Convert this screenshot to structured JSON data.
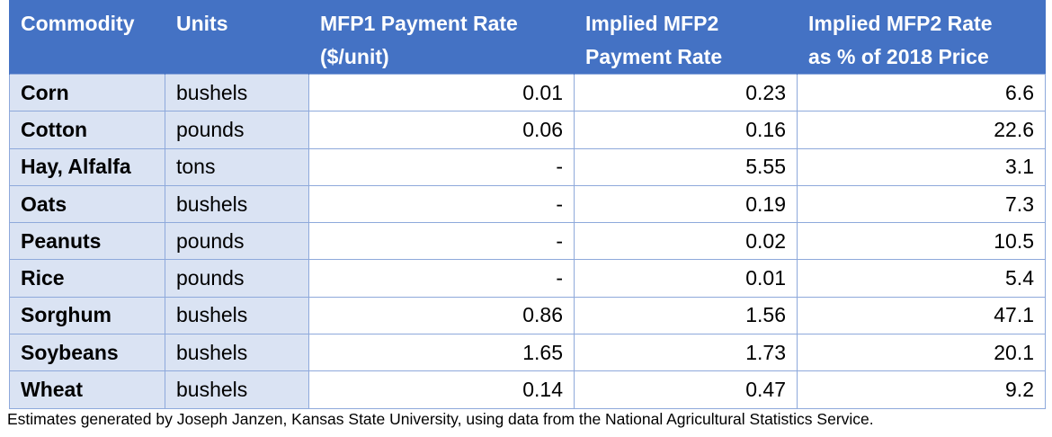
{
  "table": {
    "headers": [
      [
        "Commodity"
      ],
      [
        "Units"
      ],
      [
        "MFP1 Payment Rate",
        "($/unit)"
      ],
      [
        "Implied MFP2",
        "Payment Rate"
      ],
      [
        "Implied MFP2 Rate",
        "as % of 2018 Price"
      ]
    ],
    "rows": [
      {
        "commodity": "Corn",
        "units": "bushels",
        "mfp1": "0.01",
        "mfp2": "0.23",
        "pct": "6.6"
      },
      {
        "commodity": "Cotton",
        "units": "pounds",
        "mfp1": "0.06",
        "mfp2": "0.16",
        "pct": "22.6"
      },
      {
        "commodity": "Hay, Alfalfa",
        "units": "tons",
        "mfp1": "-",
        "mfp2": "5.55",
        "pct": "3.1"
      },
      {
        "commodity": "Oats",
        "units": "bushels",
        "mfp1": "-",
        "mfp2": "0.19",
        "pct": "7.3"
      },
      {
        "commodity": "Peanuts",
        "units": "pounds",
        "mfp1": "-",
        "mfp2": "0.02",
        "pct": "10.5"
      },
      {
        "commodity": "Rice",
        "units": "pounds",
        "mfp1": "-",
        "mfp2": "0.01",
        "pct": "5.4"
      },
      {
        "commodity": "Sorghum",
        "units": "bushels",
        "mfp1": "0.86",
        "mfp2": "1.56",
        "pct": "47.1"
      },
      {
        "commodity": "Soybeans",
        "units": "bushels",
        "mfp1": "1.65",
        "mfp2": "1.73",
        "pct": "20.1"
      },
      {
        "commodity": "Wheat",
        "units": "bushels",
        "mfp1": "0.14",
        "mfp2": "0.47",
        "pct": "9.2"
      }
    ]
  },
  "footnote": "Estimates generated by Joseph Janzen, Kansas State University, using data from the National Agricultural Statistics Service.",
  "colors": {
    "header_bg": "#4472c4",
    "label_cell_bg": "#dae3f3",
    "border": "#8ea9db"
  }
}
